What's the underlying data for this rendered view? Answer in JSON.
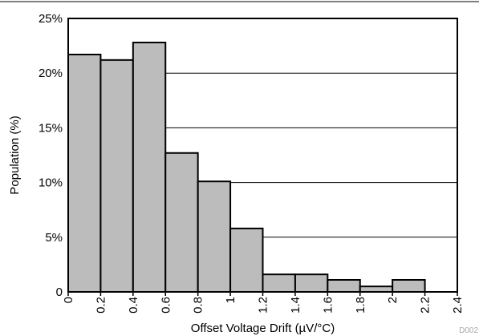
{
  "chart_data": {
    "type": "bar",
    "bin_edges": [
      0,
      0.2,
      0.4,
      0.6,
      0.8,
      1.0,
      1.2,
      1.4,
      1.6,
      1.8,
      2.0,
      2.2
    ],
    "values": [
      21.7,
      21.2,
      22.8,
      12.7,
      10.1,
      5.8,
      1.6,
      1.6,
      1.1,
      0.5,
      1.1
    ],
    "xlabel": "Offset Voltage Drift (µV/°C)",
    "ylabel": "Population (%)",
    "xlim": [
      0,
      2.4
    ],
    "ylim": [
      0,
      25
    ],
    "x_ticks": [
      "0",
      "0.2",
      "0.4",
      "0.6",
      "0.8",
      "1",
      "1.2",
      "1.4",
      "1.6",
      "1.8",
      "2",
      "2.2",
      "2.4"
    ],
    "y_ticks": [
      "0",
      "5%",
      "10%",
      "15%",
      "20%",
      "25%"
    ],
    "grid": "horizontal",
    "bar_color": "#bcbcbc",
    "bar_edge_color": "#000000",
    "footnote": "D002"
  }
}
